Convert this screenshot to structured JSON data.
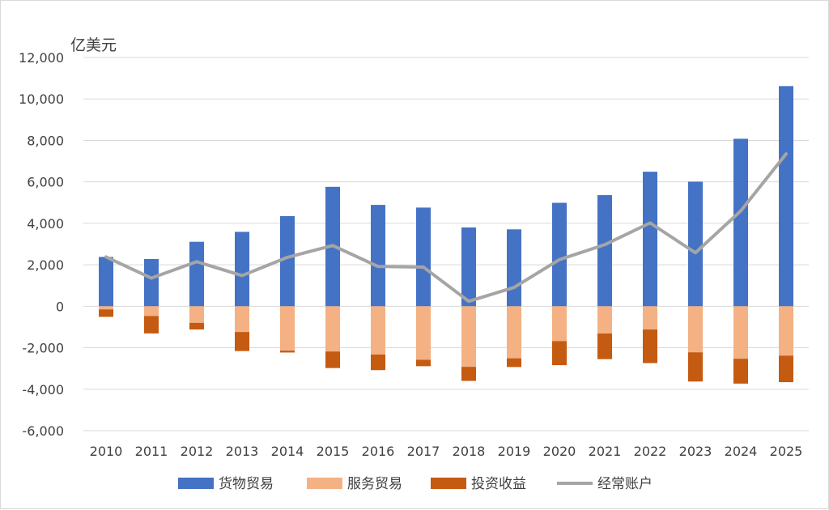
{
  "chart_data": {
    "type": "bar",
    "unit_label": "亿美元",
    "ylim": [
      -6000,
      12000
    ],
    "yticks": [
      12000,
      10000,
      8000,
      6000,
      4000,
      2000,
      0,
      -2000,
      -4000,
      -6000
    ],
    "ytick_labels": [
      "12,000",
      "10,000",
      "8,000",
      "6,000",
      "4,000",
      "2,000",
      "0",
      "-2,000",
      "-4,000",
      "-6,000"
    ],
    "categories": [
      "2010",
      "2011",
      "2012",
      "2013",
      "2014",
      "2015",
      "2016",
      "2017",
      "2018",
      "2019",
      "2020",
      "2021",
      "2022",
      "2023",
      "2024",
      "2025"
    ],
    "grid": true,
    "legend_position": "bottom",
    "series": [
      {
        "name": "货物贸易",
        "kind": "bar",
        "color": "#4472C4",
        "values": [
          2380,
          2280,
          3110,
          3590,
          4350,
          5760,
          4890,
          4760,
          3800,
          3710,
          4990,
          5360,
          6490,
          6010,
          8080,
          10620
        ]
      },
      {
        "name": "服务贸易",
        "kind": "bar",
        "color": "#F4B183",
        "values": [
          -150,
          -470,
          -800,
          -1240,
          -2140,
          -2180,
          -2330,
          -2580,
          -2920,
          -2510,
          -1680,
          -1310,
          -1120,
          -2220,
          -2530,
          -2380
        ]
      },
      {
        "name": "投资收益",
        "kind": "bar",
        "color": "#C55A11",
        "values": [
          -360,
          -840,
          -320,
          -920,
          -90,
          -800,
          -750,
          -310,
          -680,
          -420,
          -1160,
          -1240,
          -1620,
          -1410,
          -1200,
          -1280
        ]
      },
      {
        "name": "经常账户",
        "kind": "line",
        "color": "#A5A5A5",
        "values": [
          2380,
          1360,
          2150,
          1480,
          2360,
          2930,
          1920,
          1890,
          240,
          910,
          2250,
          2970,
          4020,
          2580,
          4600,
          7350
        ]
      }
    ]
  }
}
